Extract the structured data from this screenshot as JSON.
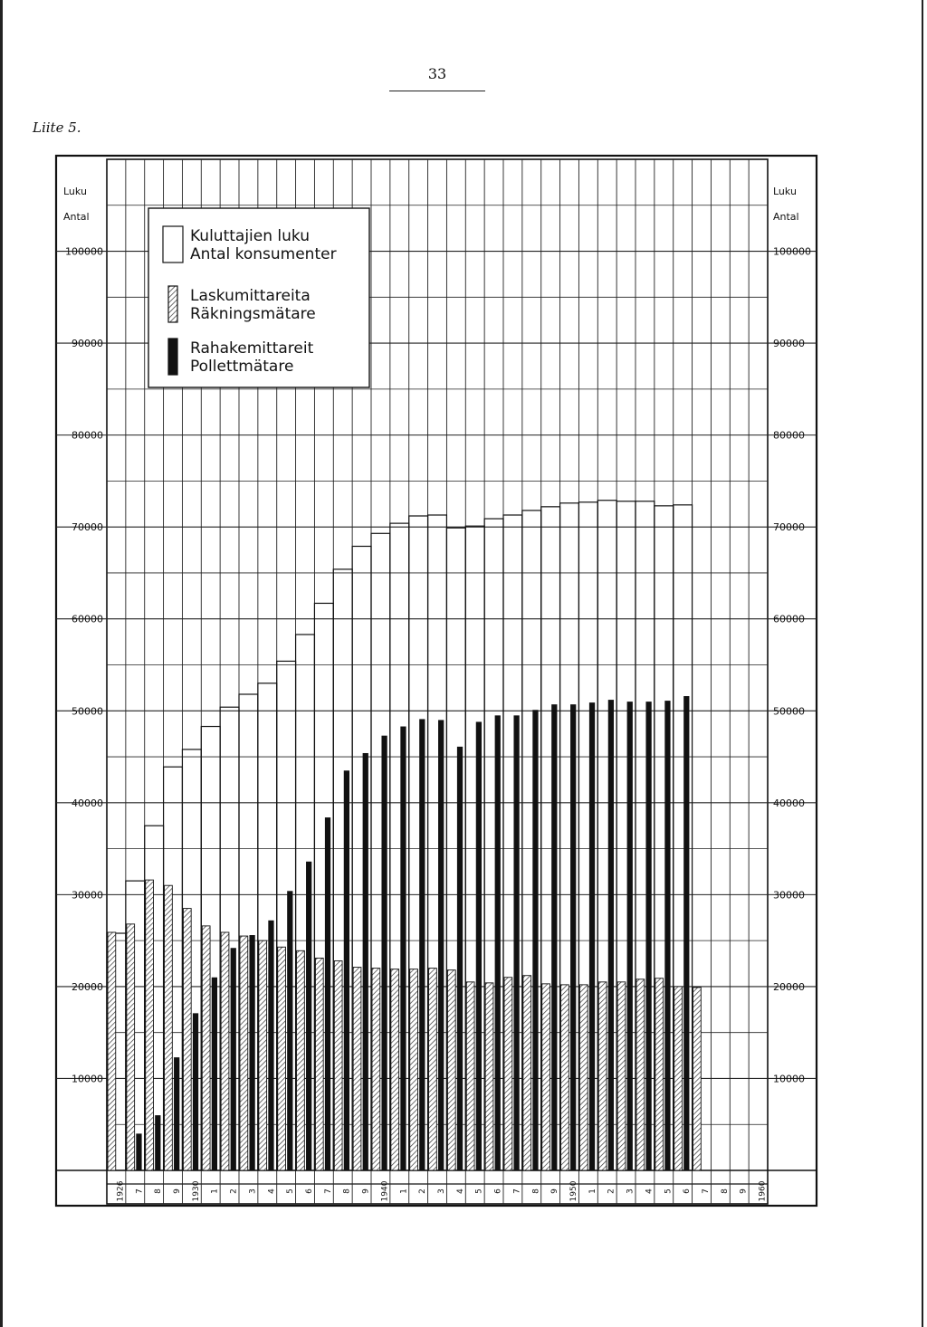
{
  "page": {
    "number": "33",
    "appendix": "Liite 5."
  },
  "chart_data": {
    "type": "bar",
    "axis_title_left": [
      "Luku",
      "Antal"
    ],
    "axis_title_right": [
      "Luku",
      "Antal"
    ],
    "ylim": [
      0,
      110000
    ],
    "yticks": [
      "100000",
      "90000",
      "80000",
      "70000",
      "60000",
      "50000",
      "40000",
      "30000",
      "20000",
      "10000"
    ],
    "ytick_values": [
      100000,
      90000,
      80000,
      70000,
      60000,
      50000,
      40000,
      30000,
      20000,
      10000
    ],
    "yticks_right": [
      "100000",
      "90000",
      "80000",
      "70000",
      "60000",
      "50000",
      "40000",
      "30000",
      "20000",
      "10000"
    ],
    "grid": true,
    "legend_position": "top-left",
    "legend": [
      {
        "fi": "Kuluttajien luku",
        "sv": "Antal konsumenter",
        "style": "outline"
      },
      {
        "fi": "Laskumittareita",
        "sv": "Räkningsmätare",
        "style": "hatched"
      },
      {
        "fi": "Rahakemittareit",
        "sv": "Pollettmätare",
        "style": "solid"
      }
    ],
    "categories": [
      "1926",
      "7",
      "8",
      "9",
      "1930",
      "1",
      "2",
      "3",
      "4",
      "5",
      "6",
      "7",
      "8",
      "9",
      "1940",
      "1",
      "2",
      "3",
      "4",
      "5",
      "6",
      "7",
      "8",
      "9",
      "1950",
      "1",
      "2",
      "3",
      "4",
      "5",
      "6",
      "7",
      "8",
      "9",
      "1960"
    ],
    "series": [
      {
        "name": "Kuluttajien luku / Antal konsumenter",
        "values": [
          25800,
          31500,
          37500,
          43900,
          45800,
          48300,
          50400,
          51800,
          53000,
          55400,
          58300,
          61700,
          65400,
          67900,
          69300,
          70400,
          71200,
          71300,
          69900,
          70100,
          70900,
          71300,
          71800,
          72200,
          72600,
          72700,
          72900,
          72800,
          72800,
          72300,
          72400,
          null,
          null,
          null,
          null
        ]
      },
      {
        "name": "Laskumittareita / Räkningsmätare",
        "values": [
          25900,
          26800,
          31600,
          31000,
          28500,
          26600,
          25900,
          25500,
          25000,
          24300,
          23900,
          23100,
          22800,
          22100,
          22000,
          21900,
          21900,
          22000,
          21800,
          20500,
          20400,
          21000,
          21200,
          20300,
          20200,
          20200,
          20500,
          20500,
          20800,
          20900,
          20000,
          19900,
          null,
          null,
          null
        ]
      },
      {
        "name": "Rahakemittareit / Pollettmätare",
        "values": [
          null,
          4000,
          6000,
          12300,
          17100,
          21000,
          24200,
          25600,
          27200,
          30400,
          33600,
          38400,
          43500,
          45400,
          47300,
          48300,
          49100,
          49000,
          46100,
          48800,
          49500,
          49500,
          50100,
          50700,
          50700,
          50900,
          51200,
          51000,
          51000,
          51100,
          51600,
          null,
          null,
          null,
          null
        ]
      }
    ]
  }
}
